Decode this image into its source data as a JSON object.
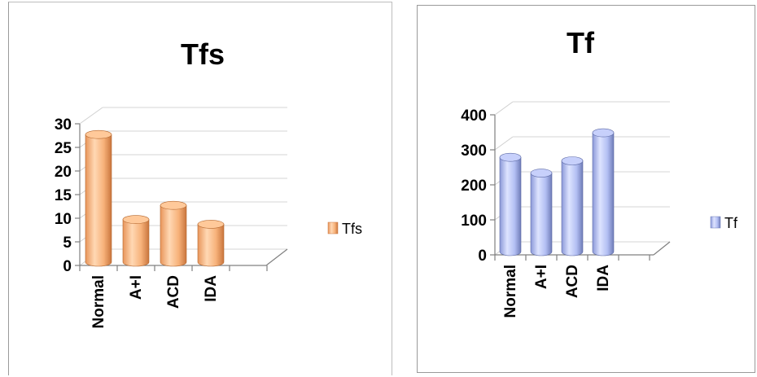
{
  "chart_data": [
    {
      "type": "bar",
      "title": "Tfs",
      "categories": [
        "Normal",
        "A+I",
        "ACD",
        "IDA"
      ],
      "series": [
        {
          "name": "Tfs",
          "values": [
            26,
            8,
            11,
            7
          ]
        }
      ],
      "ylim": [
        0,
        30
      ],
      "yticks": [
        "0",
        "5",
        "10",
        "15",
        "20",
        "25",
        "30"
      ],
      "grid": true,
      "legend": "right",
      "color": "#f7b27a"
    },
    {
      "type": "bar",
      "title": "Tf",
      "categories": [
        "Normal",
        "A+I",
        "ACD",
        "IDA"
      ],
      "series": [
        {
          "name": "Tf",
          "values": [
            260,
            215,
            250,
            330
          ]
        }
      ],
      "ylim": [
        0,
        400
      ],
      "yticks": [
        "0",
        "100",
        "200",
        "300",
        "400"
      ],
      "grid": true,
      "legend": "right",
      "color": "#a9b6ee"
    }
  ]
}
